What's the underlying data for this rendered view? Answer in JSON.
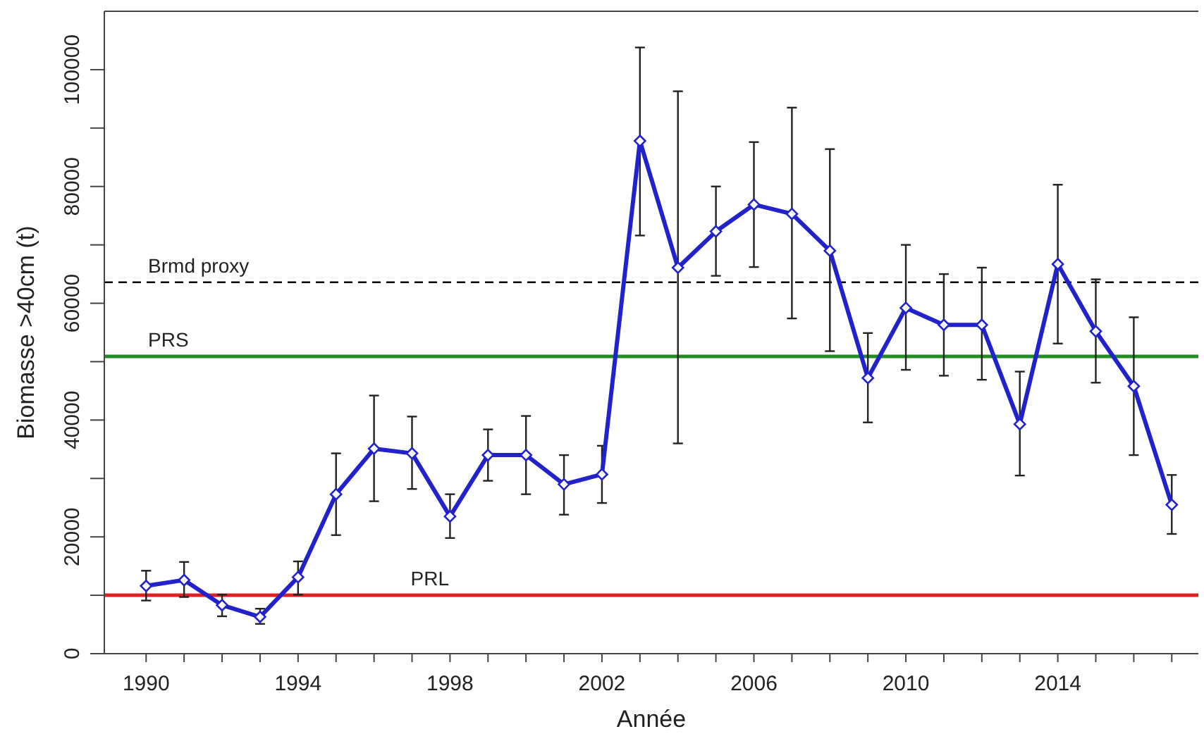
{
  "chart_data": {
    "type": "line",
    "xlabel": "Année",
    "ylabel": "Biomasse >40cm (t)",
    "x": [
      1990,
      1991,
      1992,
      1993,
      1994,
      1995,
      1996,
      1997,
      1998,
      1999,
      2000,
      2001,
      2002,
      2003,
      2004,
      2005,
      2006,
      2007,
      2008,
      2009,
      2010,
      2011,
      2012,
      2013,
      2014,
      2015,
      2016,
      2017
    ],
    "series": [
      {
        "color": "#2222cc",
        "values": [
          11600,
          12600,
          8300,
          6300,
          13100,
          27300,
          35100,
          34300,
          23500,
          34000,
          34000,
          29000,
          30700,
          87800,
          66100,
          72300,
          76900,
          75300,
          69000,
          47200,
          59200,
          56300,
          56300,
          39300,
          66700,
          55200,
          45800,
          25500
        ],
        "errors": [
          [
            9100,
            14200
          ],
          [
            9700,
            15700
          ],
          [
            6400,
            10100
          ],
          [
            5100,
            7700
          ],
          [
            10100,
            15800
          ],
          [
            20300,
            34300
          ],
          [
            26100,
            44200
          ],
          [
            28200,
            40600
          ],
          [
            19800,
            27300
          ],
          [
            29600,
            38400
          ],
          [
            27300,
            40700
          ],
          [
            23800,
            34000
          ],
          [
            25800,
            35600
          ],
          [
            71600,
            103800
          ],
          [
            36000,
            96300
          ],
          [
            64700,
            80000
          ],
          [
            66200,
            87600
          ],
          [
            57400,
            93500
          ],
          [
            51800,
            86400
          ],
          [
            39600,
            54900
          ],
          [
            48600,
            70000
          ],
          [
            47600,
            65000
          ],
          [
            46900,
            66100
          ],
          [
            30500,
            48300
          ],
          [
            53100,
            80300
          ],
          [
            46400,
            64100
          ],
          [
            34000,
            57600
          ],
          [
            20500,
            30600
          ]
        ]
      }
    ],
    "marker": "diamond",
    "line_style": "solid",
    "grid": false,
    "xlim": [
      1988.9,
      2017.7
    ],
    "xticks": [
      1990,
      {
        "value": 1991,
        "label": null
      },
      {
        "value": 1992,
        "label": null
      },
      {
        "value": 1993,
        "label": null
      },
      1994,
      {
        "value": 1995,
        "label": null
      },
      {
        "value": 1996,
        "label": null
      },
      {
        "value": 1997,
        "label": null
      },
      1998,
      {
        "value": 1999,
        "label": null
      },
      {
        "value": 2000,
        "label": null
      },
      {
        "value": 2001,
        "label": null
      },
      2002,
      {
        "value": 2003,
        "label": null
      },
      {
        "value": 2004,
        "label": null
      },
      {
        "value": 2005,
        "label": null
      },
      2006,
      {
        "value": 2007,
        "label": null
      },
      {
        "value": 2008,
        "label": null
      },
      {
        "value": 2009,
        "label": null
      },
      2010,
      {
        "value": 2011,
        "label": null
      },
      {
        "value": 2012,
        "label": null
      },
      {
        "value": 2013,
        "label": null
      },
      2014,
      {
        "value": 2015,
        "label": null
      },
      {
        "value": 2016,
        "label": null
      },
      {
        "value": 2017,
        "label": null
      }
    ],
    "ylim": [
      0,
      110000
    ],
    "yticks": [
      0,
      {
        "value": 10000,
        "label": null
      },
      20000,
      {
        "value": 30000,
        "label": null
      },
      40000,
      {
        "value": 50000,
        "label": null
      },
      60000,
      {
        "value": 70000,
        "label": null
      },
      80000,
      {
        "value": 90000,
        "label": null
      },
      100000
    ],
    "ref_lines": [
      {
        "axis": "y",
        "value": 63600,
        "label": "Brmd proxy",
        "color": "#000000",
        "line_style": "dashed"
      },
      {
        "axis": "y",
        "value": 50900,
        "label": "PRS",
        "color": "#228b22",
        "line_style": "solid"
      },
      {
        "axis": "y",
        "value": 10000,
        "label": "PRL",
        "color": "#e02020",
        "line_style": "solid"
      }
    ]
  }
}
